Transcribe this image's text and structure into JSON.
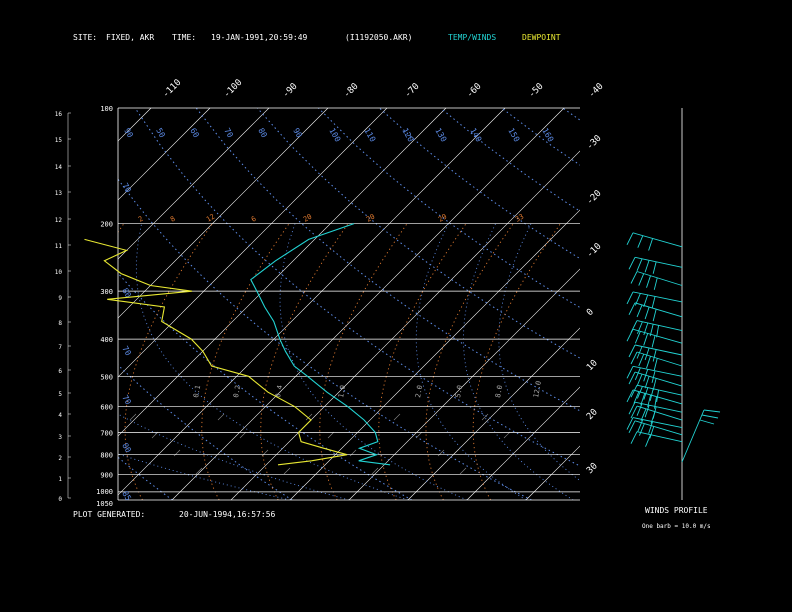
{
  "header": {
    "site_label": "SITE:",
    "site_value": "FIXED, AKR",
    "time_label": "TIME:",
    "time_value": "19-JAN-1991,20:59:49",
    "file_id": "(I1192050.AKR)",
    "legend_temp": "TEMP/WINDS",
    "legend_dew": "DEWPOINT"
  },
  "footer": {
    "plot_generated_label": "PLOT GENERATED:",
    "plot_generated_value": "20-JUN-1994,16:57:56",
    "winds_title": "WINDS PROFILE",
    "winds_note": "One barb = 10.0 m/s"
  },
  "colors": {
    "temp": "#22d3d3",
    "dewpoint": "#e8e832",
    "isobar": "#ffffff",
    "isotherm": "#ffffff",
    "mixing_ratio": "#e07a30",
    "dry_adiabat": "#5d8ce8",
    "moist_adiabat": "#5d8ce8",
    "dry_label": "#5d8ce8",
    "mixing_label": "#e07a30"
  },
  "chart_data": {
    "type": "line",
    "subtype": "skew-T log-P diagram",
    "pressure_ticks": [
      "100",
      "200",
      "300",
      "400",
      "500",
      "600",
      "700",
      "800",
      "900",
      "1000",
      "1050"
    ],
    "height_ticks": [
      "16",
      "15",
      "14",
      "13",
      "12",
      "11",
      "10",
      "9",
      "8",
      "7",
      "6",
      "5",
      "4",
      "3",
      "2",
      "1",
      "0"
    ],
    "isotherm_labels_top": [
      "-110",
      "-100",
      "-90",
      "-80",
      "-70",
      "-60",
      "-50",
      "-40"
    ],
    "isotherm_labels_right": [
      "-30",
      "-20",
      "-10",
      "0",
      "10",
      "20",
      "30"
    ],
    "mixing_ratio_labels": [
      "2",
      "8",
      "12",
      "6",
      "20",
      "20",
      "29",
      "33"
    ],
    "dry_adiabat_labels": [
      "90",
      "50",
      "60",
      "70",
      "80",
      "90",
      "100",
      "110",
      "120",
      "130",
      "140",
      "150",
      "160"
    ],
    "moist_labels": [
      "0.1",
      "0.2",
      "0.4",
      "1.0",
      "2.0",
      "5.0",
      "8.0",
      "12.0"
    ],
    "temperature": {
      "name": "TEMP/WINDS",
      "pressure": [
        200,
        220,
        250,
        280,
        300,
        330,
        360,
        400,
        430,
        470,
        500,
        550,
        600,
        650,
        700,
        740,
        770,
        800,
        830,
        850
      ],
      "values": [
        -56,
        -61,
        -63,
        -64,
        -61,
        -57,
        -53,
        -49,
        -46,
        -42,
        -38,
        -32,
        -26,
        -21,
        -17,
        -15,
        -17,
        -13,
        -15,
        -9
      ]
    },
    "dewpoint": {
      "name": "DEWPOINT",
      "pressure": [
        220,
        235,
        250,
        270,
        290,
        300,
        315,
        330,
        360,
        400,
        430,
        470,
        500,
        550,
        600,
        650,
        700,
        740,
        770,
        800,
        830,
        850
      ],
      "values": [
        -99,
        -90,
        -92,
        -87,
        -80,
        -72,
        -85,
        -74,
        -72,
        -64,
        -60,
        -56,
        -48,
        -42,
        -35,
        -30,
        -30,
        -28,
        -23,
        -18,
        -23,
        -28
      ]
    },
    "winds": {
      "pressure": [
        230,
        260,
        290,
        320,
        350,
        380,
        410,
        440,
        470,
        500,
        530,
        560,
        590,
        620,
        650,
        680,
        710,
        740
      ],
      "speed_barbs": [
        3,
        4,
        4,
        4,
        4,
        5,
        4,
        4,
        4,
        4,
        4,
        5,
        5,
        4,
        3,
        3,
        3,
        2
      ]
    }
  }
}
